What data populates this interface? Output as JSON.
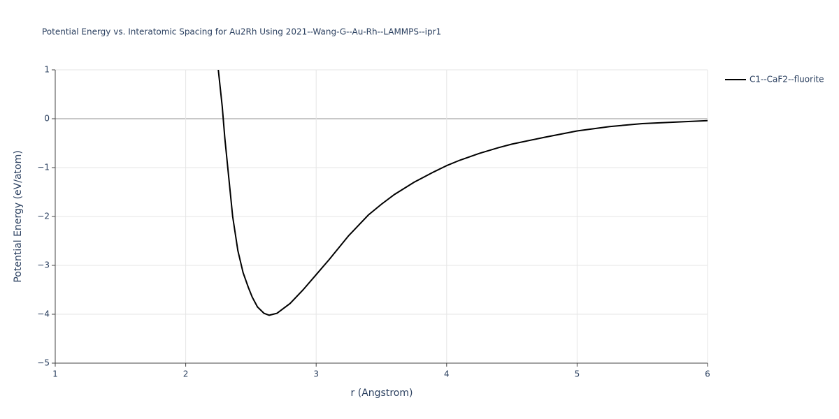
{
  "chart_data": {
    "type": "line",
    "title": "Potential Energy vs. Interatomic Spacing for Au2Rh Using 2021--Wang-G--Au-Rh--LAMMPS--ipr1",
    "x_label": "r (Angstrom)",
    "y_label": "Potential Energy (eV/atom)",
    "x": [
      2.25,
      2.28,
      2.3,
      2.33,
      2.36,
      2.4,
      2.44,
      2.48,
      2.51,
      2.55,
      2.6,
      2.64,
      2.7,
      2.8,
      2.9,
      3.0,
      3.1,
      3.25,
      3.4,
      3.5,
      3.6,
      3.75,
      3.9,
      4.0,
      4.1,
      4.25,
      4.4,
      4.5,
      4.75,
      5.0,
      5.25,
      5.5,
      5.75,
      6.0
    ],
    "series": [
      {
        "name": "C1--CaF2--fluorite",
        "color": "#000000",
        "values": [
          1.0,
          0.25,
          -0.4,
          -1.2,
          -2.0,
          -2.7,
          -3.15,
          -3.45,
          -3.65,
          -3.85,
          -3.98,
          -4.02,
          -3.98,
          -3.78,
          -3.5,
          -3.19,
          -2.88,
          -2.39,
          -1.97,
          -1.75,
          -1.55,
          -1.3,
          -1.09,
          -0.96,
          -0.85,
          -0.71,
          -0.59,
          -0.52,
          -0.38,
          -0.25,
          -0.16,
          -0.1,
          -0.07,
          -0.04
        ]
      }
    ],
    "xlim": [
      1,
      6
    ],
    "xticks": [
      1,
      2,
      3,
      4,
      5,
      6
    ],
    "ylim": [
      -5,
      1
    ],
    "yticks": [
      {
        "value": -5,
        "label": "−5"
      },
      {
        "value": -4,
        "label": "−4"
      },
      {
        "value": -3,
        "label": "−3"
      },
      {
        "value": -2,
        "label": "−2"
      },
      {
        "value": -1,
        "label": "−1"
      },
      0,
      1
    ],
    "grid": true,
    "legend": "right"
  }
}
